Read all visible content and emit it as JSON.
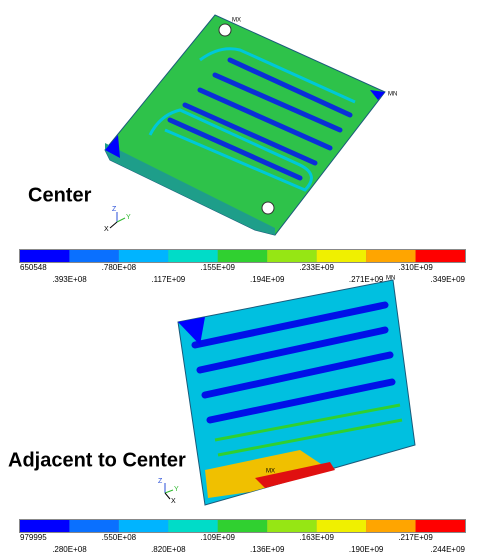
{
  "panels": [
    {
      "caption": "Center",
      "max_marker": "MX",
      "min_marker": "MN",
      "triad": [
        "Z",
        "Y",
        "X"
      ],
      "legend": {
        "labels": [
          "650548",
          ".393E+08",
          ".780E+08",
          ".117E+09",
          ".155E+09",
          ".194E+09",
          ".233E+09",
          ".271E+09",
          ".310E+09",
          ".349E+09"
        ],
        "colors": [
          "#0000ff",
          "#0a70ff",
          "#00b4ff",
          "#00dcc8",
          "#30d030",
          "#96e614",
          "#f0f000",
          "#ffa500",
          "#ff0000"
        ]
      }
    },
    {
      "caption": "Adjacent to Center",
      "max_marker": "MX",
      "min_marker": "MN",
      "triad": [
        "Z",
        "Y",
        "X"
      ],
      "legend": {
        "labels": [
          "979995",
          ".280E+08",
          ".550E+08",
          ".820E+08",
          ".109E+09",
          ".136E+09",
          ".163E+09",
          ".190E+09",
          ".217E+09",
          ".244E+09"
        ],
        "colors": [
          "#0000ff",
          "#0a70ff",
          "#00b4ff",
          "#00dcc8",
          "#30d030",
          "#96e614",
          "#f0f000",
          "#ffa500",
          "#ff0000"
        ]
      }
    }
  ]
}
